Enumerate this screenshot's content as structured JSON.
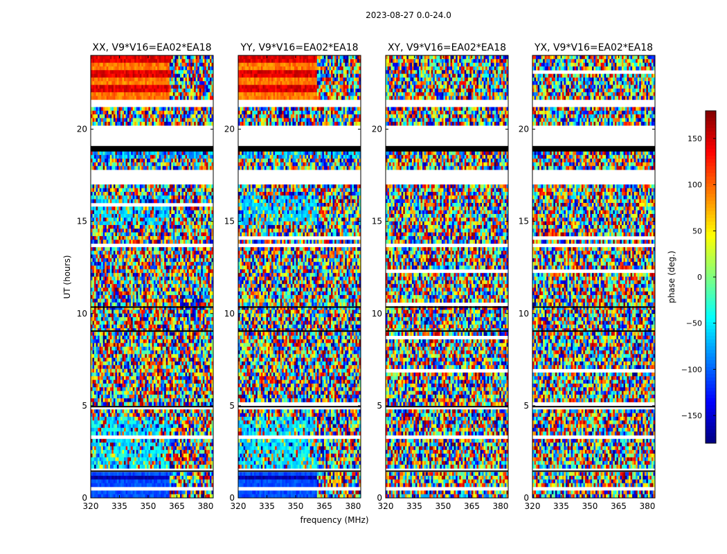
{
  "figure": {
    "title": "2023-08-27 0.0-24.0"
  },
  "chart_data": {
    "type": "heatmap",
    "xlabel": "frequency (MHz)",
    "ylabel": "UT (hours)",
    "xlim": [
      320,
      384
    ],
    "ylim": [
      0,
      24
    ],
    "x_ticks": [
      "320",
      "335",
      "350",
      "365",
      "380"
    ],
    "y_ticks": [
      "0",
      "5",
      "10",
      "15",
      "20"
    ],
    "colormap": "jet",
    "colorbar": {
      "label": "phase (deg.)",
      "range": [
        -180,
        180
      ],
      "ticks": [
        "−150",
        "−100",
        "−50",
        "0",
        "50",
        "100",
        "150"
      ]
    },
    "panels": [
      {
        "title": "XX, V9*V16=EA02*EA18",
        "pattern": "parallel"
      },
      {
        "title": "YY, V9*V16=EA02*EA18",
        "pattern": "parallel"
      },
      {
        "title": "XY, V9*V16=EA02*EA18",
        "pattern": "cross"
      },
      {
        "title": "YX, V9*V16=EA02*EA18",
        "pattern": "cross"
      }
    ],
    "flagged_ut_ranges": [
      [
        19.1,
        20.2
      ],
      [
        17.1,
        17.7
      ],
      [
        21.2,
        21.5
      ],
      [
        13.6,
        13.75
      ],
      [
        0.5,
        0.6
      ],
      [
        4.8,
        5.0
      ]
    ]
  }
}
